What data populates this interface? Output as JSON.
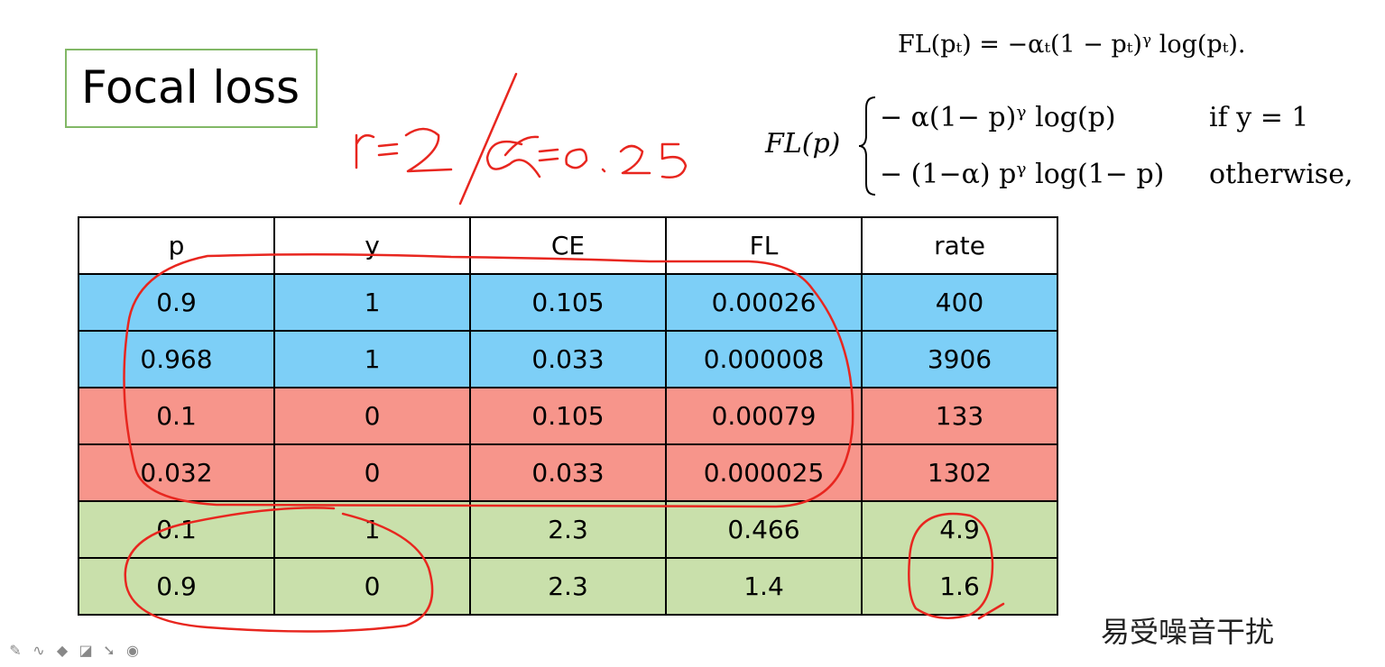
{
  "title": "Focal loss",
  "handwritten_note": "r=2 / α=0.25",
  "formula_top": "FL(pₜ) = −αₜ(1 − pₜ)ᵞ log(pₜ).",
  "formula_lhs": "FL(p)",
  "formula_case1": "− α(1− p)ᵞ log(p)",
  "formula_cond1": "if  y = 1",
  "formula_case2": "− (1−α) pᵞ log(1− p)",
  "formula_cond2": "otherwise,",
  "table": {
    "headers": [
      "p",
      "y",
      "CE",
      "FL",
      "rate"
    ],
    "rows": [
      [
        "0.9",
        "1",
        "0.105",
        "0.00026",
        "400"
      ],
      [
        "0.968",
        "1",
        "0.033",
        "0.000008",
        "3906"
      ],
      [
        "0.1",
        "0",
        "0.105",
        "0.00079",
        "133"
      ],
      [
        "0.032",
        "0",
        "0.033",
        "0.000025",
        "1302"
      ],
      [
        "0.1",
        "1",
        "2.3",
        "0.466",
        "4.9"
      ],
      [
        "0.9",
        "0",
        "2.3",
        "1.4",
        "1.6"
      ]
    ]
  },
  "side_note": "易受噪音干扰",
  "toolbar_icons": [
    "pen-icon",
    "curve-icon",
    "highlighter-icon",
    "eraser-icon",
    "pointer-icon",
    "record-icon"
  ],
  "colors": {
    "blue_row": "#7dcff7",
    "red_row": "#f7958b",
    "green_row": "#c9e0ab",
    "ink": "#e8261f",
    "title_border": "#82b866"
  }
}
